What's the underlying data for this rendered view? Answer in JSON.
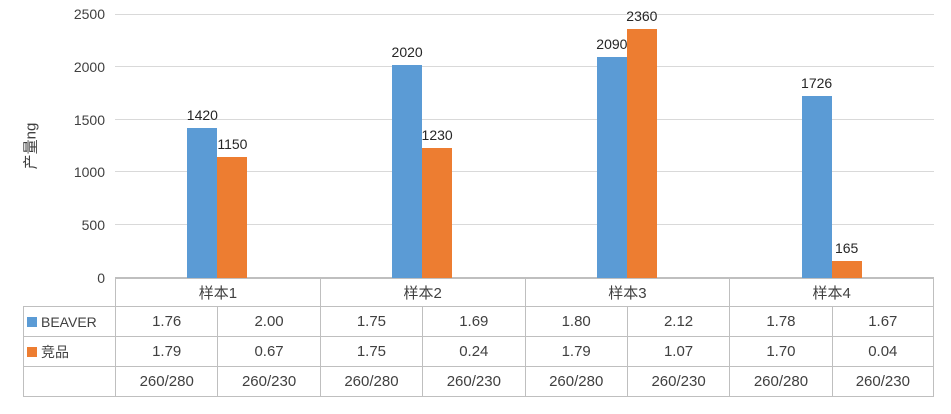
{
  "chart_data": {
    "type": "bar",
    "title": "",
    "xlabel": "",
    "ylabel": "产量ng",
    "ylim": [
      0,
      2500
    ],
    "yticks": [
      0,
      500,
      1000,
      1500,
      2000,
      2500
    ],
    "grid": true,
    "legend_position": "table-left",
    "categories": [
      "样本1",
      "样本2",
      "样本3",
      "样本4"
    ],
    "series": [
      {
        "name": "BEAVER",
        "color": "#5B9BD5",
        "values": [
          1420,
          2020,
          2090,
          1726
        ]
      },
      {
        "name": "竞品",
        "color": "#ED7D31",
        "values": [
          1150,
          1230,
          2360,
          165
        ]
      }
    ]
  },
  "table": {
    "sub_columns": [
      "260/280",
      "260/230"
    ],
    "rows": [
      {
        "name": "BEAVER",
        "color": "#5B9BD5",
        "values": [
          "1.76",
          "2.00",
          "1.75",
          "1.69",
          "1.80",
          "2.12",
          "1.78",
          "1.67"
        ]
      },
      {
        "name": "竞品",
        "color": "#ED7D31",
        "values": [
          "1.79",
          "0.67",
          "1.75",
          "0.24",
          "1.79",
          "1.07",
          "1.70",
          "0.04"
        ]
      }
    ],
    "bottom_row": [
      "260/280",
      "260/230",
      "260/280",
      "260/230",
      "260/280",
      "260/230",
      "260/280",
      "260/230"
    ]
  }
}
